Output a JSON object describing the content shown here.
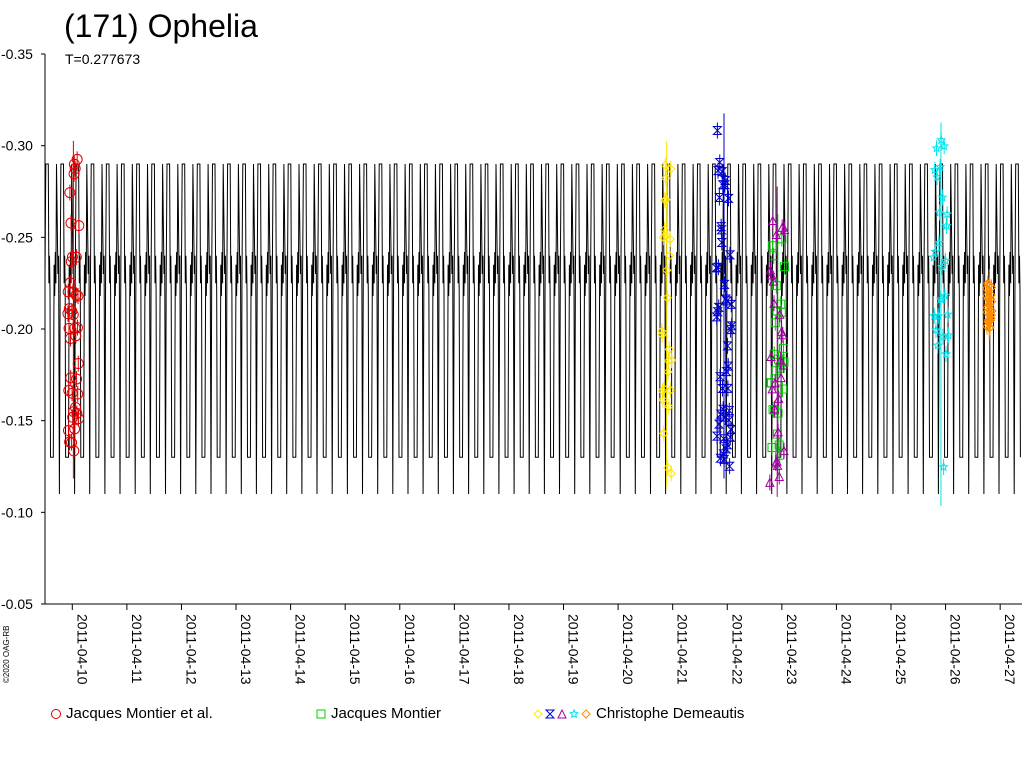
{
  "chart_data": {
    "type": "scatter",
    "title": "(171) Ophelia",
    "subtitle": "T=0.277673",
    "copyright": "©2020 OAG-RB",
    "y_inverted": true,
    "ylim": [
      -0.05,
      -0.35
    ],
    "yticks": [
      -0.35,
      -0.3,
      -0.25,
      -0.2,
      -0.15,
      -0.1,
      -0.05
    ],
    "ytick_labels": [
      "-0.35",
      "-0.30",
      "-0.25",
      "-0.20",
      "-0.15",
      "-0.10",
      "-0.05"
    ],
    "xlim": [
      "2011-04-09.5",
      "2011-04-27.4"
    ],
    "xticks": [
      "2011-04-10",
      "2011-04-11",
      "2011-04-12",
      "2011-04-13",
      "2011-04-14",
      "2011-04-15",
      "2011-04-16",
      "2011-04-17",
      "2011-04-18",
      "2011-04-19",
      "2011-04-20",
      "2011-04-21",
      "2011-04-22",
      "2011-04-23",
      "2011-04-24",
      "2011-04-25",
      "2011-04-26",
      "2011-04-27"
    ],
    "model_curve": {
      "period_days": 0.277673,
      "min_mag": -0.13,
      "max_mag": -0.29,
      "secondary_level": -0.23
    },
    "grid": false,
    "legend_placement": "bottom",
    "series": [
      {
        "name": "Jacques Montier et al.",
        "symbol": "circle",
        "color": "#e00000",
        "x_range": [
          "2011-04-09.92",
          "2011-04-10.12"
        ],
        "y_range": [
          -0.125,
          -0.295
        ]
      },
      {
        "name": "Jacques Montier",
        "symbol": "square",
        "color": "#00cc00",
        "x_range": [
          "2011-04-22.80",
          "2011-04-23.05"
        ],
        "y_range": [
          -0.125,
          -0.255
        ]
      },
      {
        "name": "Christophe Demeautis",
        "symbol": "diamond",
        "color": "#ffe600",
        "x_range": [
          "2011-04-20.80",
          "2011-04-20.98"
        ],
        "y_range": [
          -0.12,
          -0.295
        ]
      },
      {
        "name": "Christophe Demeautis",
        "symbol": "hourglass",
        "color": "#0000cc",
        "x_range": [
          "2011-04-21.80",
          "2011-04-22.08"
        ],
        "y_range": [
          -0.125,
          -0.31
        ]
      },
      {
        "name": "Christophe Demeautis",
        "symbol": "triangle",
        "color": "#a000a0",
        "x_range": [
          "2011-04-22.78",
          "2011-04-23.05"
        ],
        "y_range": [
          -0.115,
          -0.27
        ]
      },
      {
        "name": "Christophe Demeautis",
        "symbol": "star",
        "color": "#00e5ee",
        "x_range": [
          "2011-04-25.78",
          "2011-04-26.05"
        ],
        "y_range": [
          -0.11,
          -0.305
        ]
      },
      {
        "name": "Christophe Demeautis",
        "symbol": "diamond",
        "color": "#ff8c00",
        "x_range": [
          "2011-04-26.75",
          "2011-04-26.85"
        ],
        "y_range": [
          -0.2,
          -0.225
        ]
      }
    ]
  },
  "legend": [
    {
      "label": "Jacques Montier et al.",
      "symbols": [
        {
          "shape": "circle",
          "color": "#e00000"
        }
      ]
    },
    {
      "label": "Jacques Montier",
      "symbols": [
        {
          "shape": "square",
          "color": "#00cc00"
        }
      ]
    },
    {
      "label": "Christophe Demeautis",
      "symbols": [
        {
          "shape": "diamond",
          "color": "#ffe600"
        },
        {
          "shape": "hourglass",
          "color": "#0000cc"
        },
        {
          "shape": "triangle",
          "color": "#a000a0"
        },
        {
          "shape": "star",
          "color": "#00e5ee"
        },
        {
          "shape": "diamond",
          "color": "#ff8c00"
        }
      ]
    }
  ]
}
